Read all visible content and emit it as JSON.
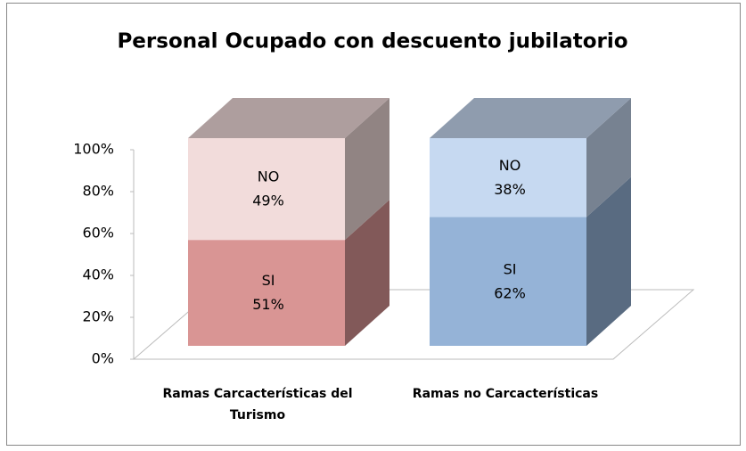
{
  "chart_data": {
    "type": "bar",
    "stacked": true,
    "title": "Personal Ocupado con descuento jubilatorio",
    "categories": [
      "Ramas Carcacterísticas del Turismo",
      "Ramas no Carcacterísticas"
    ],
    "series": [
      {
        "name": "SI",
        "colors": [
          "#d99594",
          "#95b3d7"
        ],
        "values": [
          51,
          62
        ],
        "value_labels": [
          "51%",
          "62%"
        ]
      },
      {
        "name": "NO",
        "colors": [
          "#f2dcdb",
          "#c6d9f1"
        ],
        "values": [
          49,
          38
        ],
        "value_labels": [
          "49%",
          "38%"
        ]
      }
    ],
    "ylim": [
      0,
      100
    ],
    "yticks": [
      {
        "value": 0,
        "label": "0%"
      },
      {
        "value": 20,
        "label": "20%"
      },
      {
        "value": 40,
        "label": "40%"
      },
      {
        "value": 60,
        "label": "60%"
      },
      {
        "value": 80,
        "label": "80%"
      },
      {
        "value": 100,
        "label": "100%"
      }
    ],
    "grid": false
  }
}
